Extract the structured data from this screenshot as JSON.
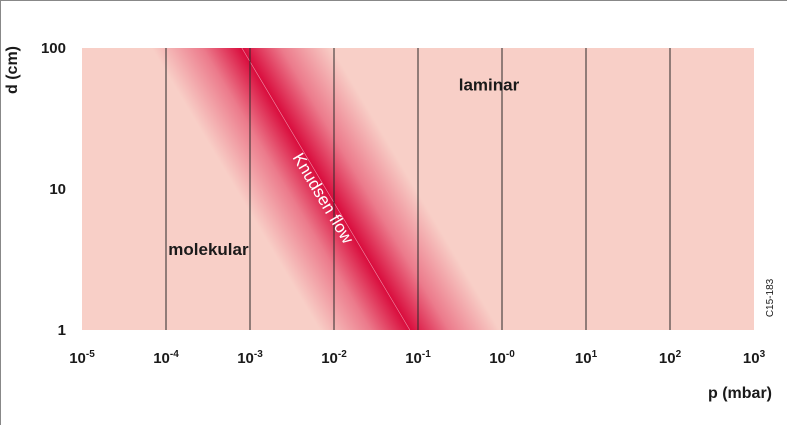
{
  "chart_data": {
    "type": "area",
    "x_scale": "log",
    "y_scale": "log",
    "xlabel": "p (mbar)",
    "ylabel": "d (cm)",
    "x_ticks": [
      {
        "base": "10",
        "exp": "-5",
        "value": 1e-05
      },
      {
        "base": "10",
        "exp": "-4",
        "value": 0.0001
      },
      {
        "base": "10",
        "exp": "-3",
        "value": 0.001
      },
      {
        "base": "10",
        "exp": "-2",
        "value": 0.01
      },
      {
        "base": "10",
        "exp": "-1",
        "value": 0.1
      },
      {
        "base": "10",
        "exp": "-0",
        "value": 1
      },
      {
        "base": "10",
        "exp": "1",
        "value": 10
      },
      {
        "base": "10",
        "exp": "2",
        "value": 100
      },
      {
        "base": "10",
        "exp": "3",
        "value": 1000
      }
    ],
    "y_ticks": [
      {
        "label": "1",
        "value": 1
      },
      {
        "label": "10",
        "value": 10
      },
      {
        "label": "100",
        "value": 100
      }
    ],
    "xlim": [
      1e-05,
      1000
    ],
    "ylim": [
      1,
      100
    ],
    "grid": {
      "vertical": true,
      "horizontal": false
    },
    "regions": [
      {
        "name": "molekular",
        "label_at": {
          "p": 0.00032,
          "d": 3.4
        }
      },
      {
        "name": "Knudsen flow",
        "center_line": [
          {
            "p": 0.0008,
            "d": 100
          },
          {
            "p": 0.08,
            "d": 1
          }
        ],
        "label_at": {
          "p": 0.0065,
          "d": 8.2
        },
        "label_rotation_along_band": true
      },
      {
        "name": "laminar",
        "label_at": {
          "p": 0.7,
          "d": 50
        }
      }
    ],
    "colors": {
      "region_fill": "#f8cfc7",
      "band_core": "#d90b3c",
      "band_edge": "#f8cfc7",
      "grid_line": "#2a2a2a"
    }
  },
  "figure_code": "C15-183"
}
